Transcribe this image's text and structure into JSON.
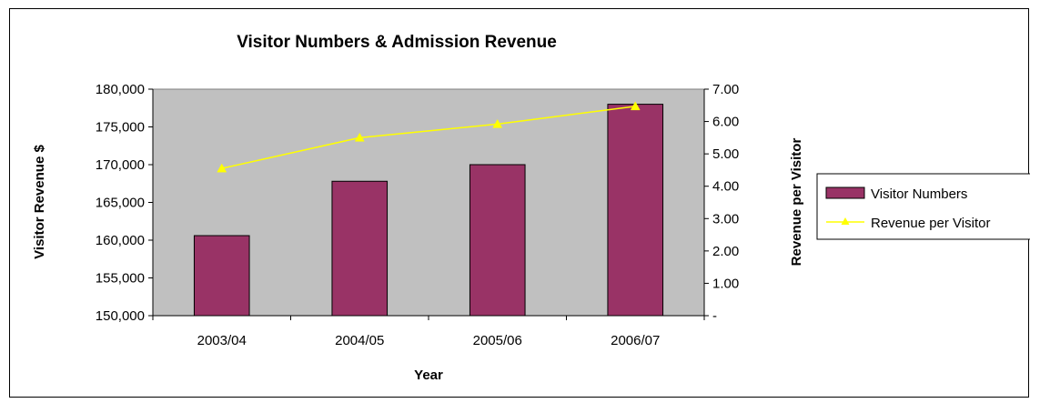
{
  "chart_data": {
    "type": "bar",
    "title": "Visitor Numbers & Admission Revenue",
    "xlabel": "Year",
    "ylabel": "Visitor Revenue $",
    "y2label": "Revenue per Visitor",
    "categories": [
      "2003/04",
      "2004/05",
      "2005/06",
      "2006/07"
    ],
    "ylim": [
      150000,
      180000
    ],
    "y2lim": [
      0,
      7
    ],
    "yticks": [
      "150,000",
      "155,000",
      "160,000",
      "165,000",
      "170,000",
      "175,000",
      "180,000"
    ],
    "y2ticks": [
      "-",
      "1.00",
      "2.00",
      "3.00",
      "4.00",
      "5.00",
      "6.00",
      "7.00"
    ],
    "series": [
      {
        "name": "Visitor Numbers",
        "type": "bar",
        "axis": "left",
        "color": "#993366",
        "values": [
          160600,
          167800,
          170000,
          178000
        ]
      },
      {
        "name": "Revenue per Visitor",
        "type": "line",
        "axis": "right",
        "color": "#ffff00",
        "marker": "triangle",
        "values": [
          4.55,
          5.5,
          5.92,
          6.47
        ]
      }
    ],
    "plot_background": "#c0c0c0",
    "grid": false,
    "legend": "right"
  }
}
